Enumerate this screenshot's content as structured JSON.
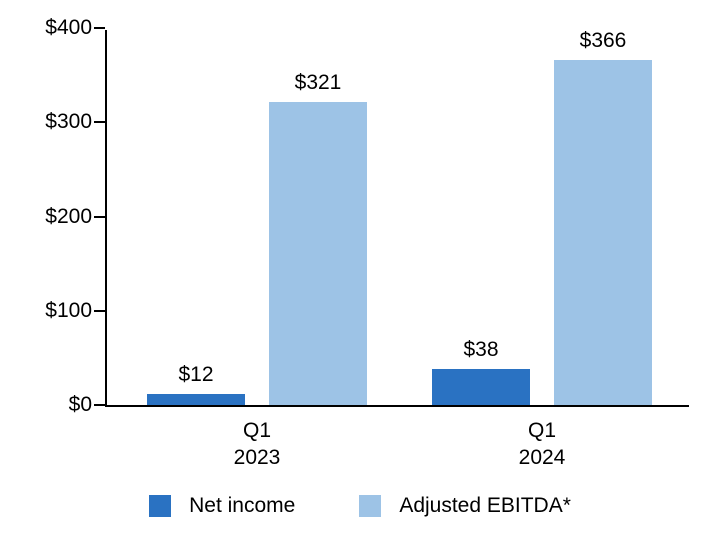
{
  "chart_data": {
    "type": "bar",
    "title": "",
    "xlabel": "",
    "ylabel": "",
    "categories": [
      {
        "line1": "Q1",
        "line2": "2023"
      },
      {
        "line1": "Q1",
        "line2": "2024"
      }
    ],
    "series": [
      {
        "name": "Net income",
        "color": "#2A72C2",
        "values": [
          12,
          38
        ],
        "labels": [
          "$12",
          "$38"
        ]
      },
      {
        "name": "Adjusted EBITDA*",
        "color": "#9DC3E6",
        "values": [
          321,
          366
        ],
        "labels": [
          "$321",
          "$366"
        ]
      }
    ],
    "ylim": [
      0,
      400
    ],
    "yticks": [
      0,
      100,
      200,
      300,
      400
    ],
    "ytick_labels": [
      "$0",
      "$100",
      "$200",
      "$300",
      "$400"
    ],
    "grid": false,
    "legend_position": "bottom",
    "axis_color": "#000000",
    "background_color": "#ffffff"
  }
}
